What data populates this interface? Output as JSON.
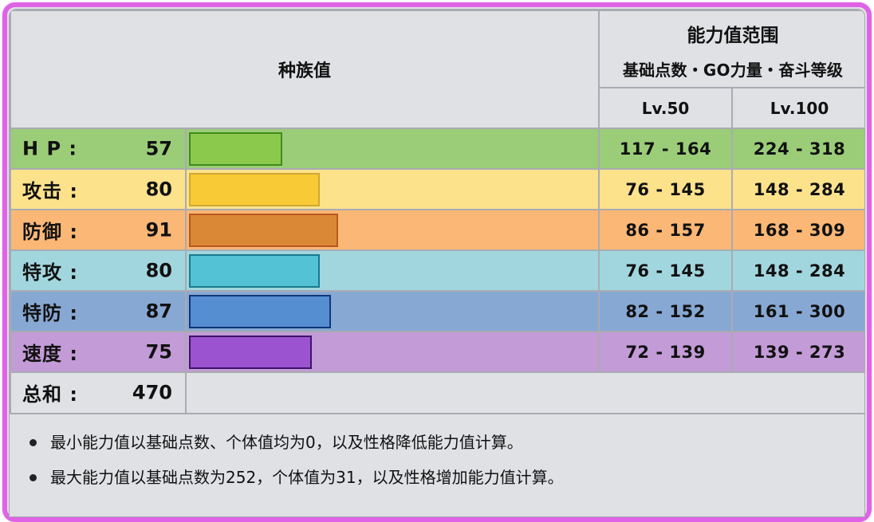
{
  "header": {
    "base_stats_title": "种族值",
    "range_title": "能力值范围",
    "range_subtitle": "基础点数・GO力量・奋斗等级",
    "lv50": "Lv.50",
    "lv100": "Lv.100"
  },
  "stats": [
    {
      "label": "H P :",
      "value": "57",
      "bar_pct": 57,
      "lv50": "117 - 164",
      "lv100": "224 - 318",
      "row_color": "#9bcd78",
      "bar_color": "#8bc94c",
      "bar_border": "#3f8a1d"
    },
    {
      "label": "攻击 :",
      "value": "80",
      "bar_pct": 80,
      "lv50": "76 - 145",
      "lv100": "148 - 284",
      "row_color": "#fde28c",
      "bar_color": "#f8cb36",
      "bar_border": "#d0a830"
    },
    {
      "label": "防御 :",
      "value": "91",
      "bar_pct": 91,
      "lv50": "86 - 157",
      "lv100": "168 - 309",
      "row_color": "#fbb776",
      "bar_color": "#da8836",
      "bar_border": "#b8581c"
    },
    {
      "label": "特攻 :",
      "value": "80",
      "bar_pct": 80,
      "lv50": "76 - 145",
      "lv100": "148 - 284",
      "row_color": "#a2d6df",
      "bar_color": "#52c2d4",
      "bar_border": "#1a7a8e"
    },
    {
      "label": "特防 :",
      "value": "87",
      "bar_pct": 87,
      "lv50": "82 - 152",
      "lv100": "161 - 300",
      "row_color": "#87a8d3",
      "bar_color": "#568ed2",
      "bar_border": "#0e3777"
    },
    {
      "label": "速度 :",
      "value": "75",
      "bar_pct": 75,
      "lv50": "72 - 139",
      "lv100": "139 - 273",
      "row_color": "#c39bd7",
      "bar_color": "#9b53cf",
      "bar_border": "#3d1468"
    }
  ],
  "total": {
    "label": "总和 :",
    "value": "470"
  },
  "notes": [
    "最小能力值以基础点数、个体值均为0，以及性格降低能力值计算。",
    "最大能力值以基础点数为252，个体值为31，以及性格增加能力值计算。"
  ],
  "colors": {
    "frame_border": "#df63e6",
    "header_bg": "#e0e1e5",
    "grid_line": "#a9abb2"
  }
}
